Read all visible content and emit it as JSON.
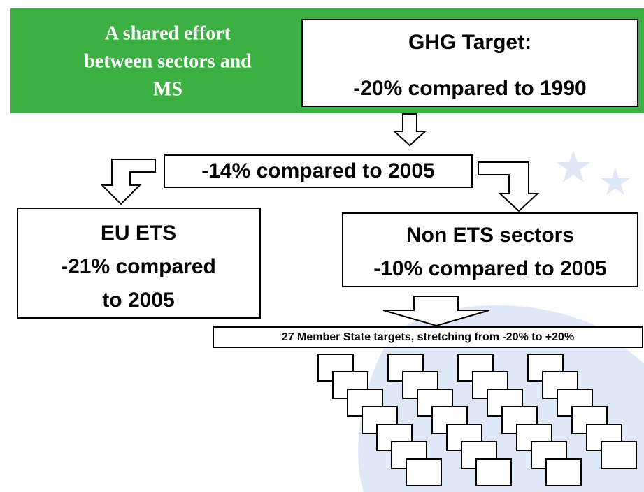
{
  "banner": {
    "lines": [
      "A shared effort",
      "between sectors and",
      "MS"
    ]
  },
  "ghg_target": {
    "lines": [
      "GHG Target:",
      "-20% compared to 1990"
    ]
  },
  "split": {
    "label": "-14% compared to 2005"
  },
  "eu_ets": {
    "lines": [
      "EU ETS",
      "-21% compared",
      "to 2005"
    ]
  },
  "non_ets": {
    "lines": [
      "Non ETS sectors",
      "-10% compared to 2005"
    ]
  },
  "member_states": {
    "label": "27 Member State targets, stretching from -20% to +20%"
  }
}
